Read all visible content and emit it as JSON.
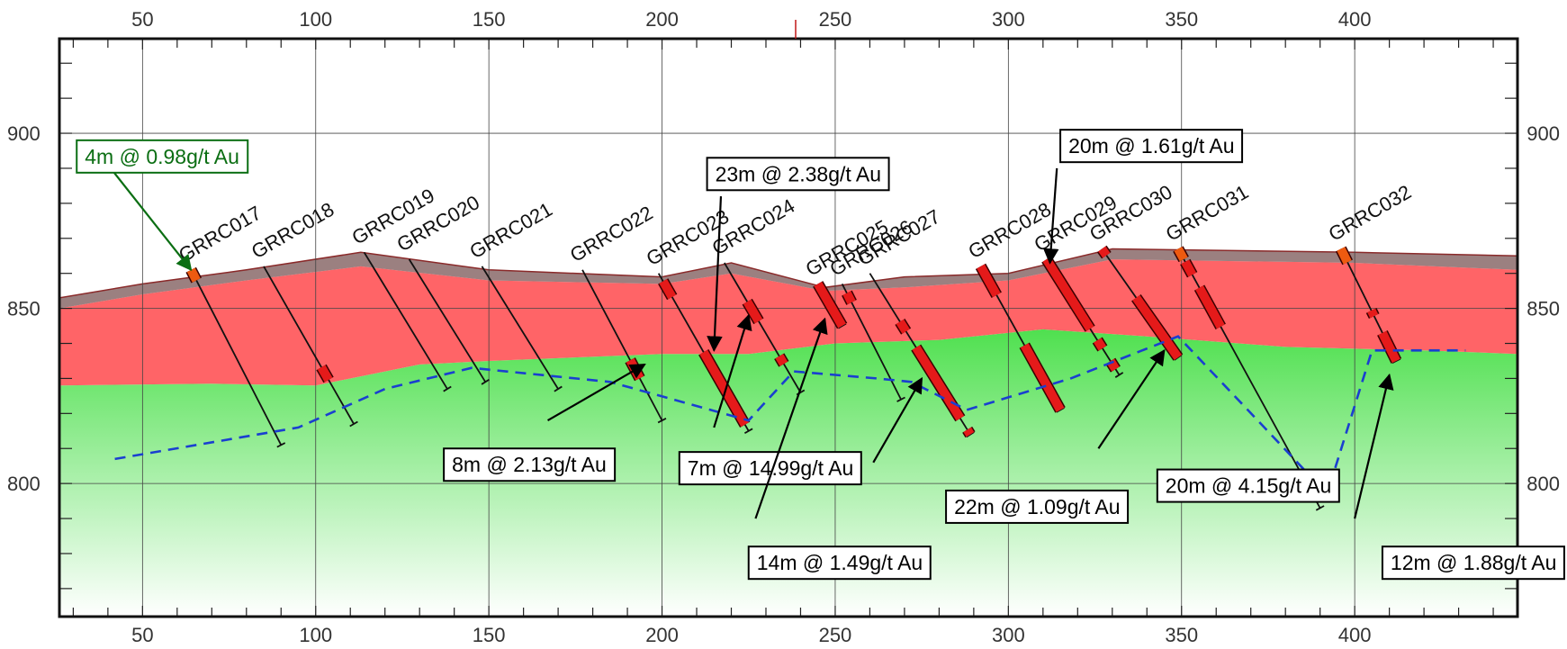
{
  "colors": {
    "weathered": "#ff6467",
    "regolith_top": "#8a6a6a",
    "fresh_top": "#4fe04f",
    "fresh_bottom": "#ffffff",
    "intercept": "#e51a1a",
    "intercept_minor": "#ee5a10",
    "water_table": "#1a3fd0",
    "annotation_green": "#0b6e13",
    "annotation_black": "#000000"
  },
  "axes": {
    "x_ticks": [
      "50",
      "100",
      "150",
      "200",
      "250",
      "300",
      "350",
      "400"
    ],
    "y_ticks": [
      "800",
      "850",
      "900"
    ],
    "xlim": [
      26,
      447
    ],
    "ylim": [
      762,
      927
    ],
    "grid": true
  },
  "surfaces": {
    "topography": [
      [
        26,
        853
      ],
      [
        50,
        857
      ],
      [
        80,
        861
      ],
      [
        113,
        866
      ],
      [
        150,
        861
      ],
      [
        200,
        859
      ],
      [
        220,
        863
      ],
      [
        247,
        856
      ],
      [
        270,
        859
      ],
      [
        300,
        860
      ],
      [
        330,
        867
      ],
      [
        400,
        866
      ],
      [
        447,
        865
      ]
    ],
    "regolith_base": [
      [
        26,
        850
      ],
      [
        50,
        854
      ],
      [
        80,
        858
      ],
      [
        113,
        862
      ],
      [
        150,
        858
      ],
      [
        200,
        857
      ],
      [
        220,
        860
      ],
      [
        247,
        855
      ],
      [
        270,
        856
      ],
      [
        300,
        858
      ],
      [
        330,
        864
      ],
      [
        400,
        863
      ],
      [
        447,
        861
      ]
    ],
    "fresh_rock_top": [
      [
        26,
        828
      ],
      [
        70,
        828.5
      ],
      [
        100,
        828
      ],
      [
        130,
        834
      ],
      [
        150,
        835
      ],
      [
        200,
        837
      ],
      [
        225,
        837
      ],
      [
        250,
        840
      ],
      [
        280,
        841
      ],
      [
        310,
        844
      ],
      [
        340,
        842
      ],
      [
        380,
        839
      ],
      [
        420,
        838
      ],
      [
        447,
        837
      ]
    ],
    "water_table": [
      [
        42,
        807
      ],
      [
        95,
        816
      ],
      [
        120,
        827
      ],
      [
        145,
        833
      ],
      [
        185,
        829
      ],
      [
        225,
        818
      ],
      [
        238,
        832
      ],
      [
        262,
        830
      ],
      [
        272,
        829
      ],
      [
        288,
        821
      ],
      [
        318,
        830
      ],
      [
        349,
        842
      ],
      [
        372,
        818
      ],
      [
        392,
        797
      ],
      [
        405,
        838
      ],
      [
        432,
        838
      ]
    ]
  },
  "drill_holes": [
    {
      "name": "GRRC017",
      "collar": [
        64,
        861
      ],
      "toe": [
        90,
        811
      ]
    },
    {
      "name": "GRRC018",
      "collar": [
        85,
        862
      ],
      "toe": [
        111,
        817
      ]
    },
    {
      "name": "GRRC019",
      "collar": [
        114,
        866
      ],
      "toe": [
        138,
        827
      ]
    },
    {
      "name": "GRRC020",
      "collar": [
        127,
        864
      ],
      "toe": [
        149,
        829
      ]
    },
    {
      "name": "GRRC021",
      "collar": [
        148,
        862
      ],
      "toe": [
        170,
        827
      ]
    },
    {
      "name": "GRRC022",
      "collar": [
        177,
        861
      ],
      "toe": [
        200,
        818
      ]
    },
    {
      "name": "GRRC023",
      "collar": [
        199,
        860
      ],
      "toe": [
        225,
        815
      ]
    },
    {
      "name": "GRRC024",
      "collar": [
        218,
        863
      ],
      "toe": [
        240,
        826
      ]
    },
    {
      "name": "GRRC025",
      "collar": [
        245,
        857
      ],
      "toe": [
        252,
        845
      ]
    },
    {
      "name": "GRRC026",
      "collar": [
        252,
        857
      ],
      "toe": [
        269,
        824
      ]
    },
    {
      "name": "GRRC027",
      "collar": [
        260,
        860
      ],
      "toe": [
        289,
        814
      ]
    },
    {
      "name": "GRRC028",
      "collar": [
        292,
        862
      ],
      "toe": [
        315,
        821
      ]
    },
    {
      "name": "GRRC029",
      "collar": [
        311,
        864
      ],
      "toe": [
        332,
        831
      ]
    },
    {
      "name": "GRRC030",
      "collar": [
        327,
        867
      ],
      "toe": [
        349,
        836
      ]
    },
    {
      "name": "GRRC031",
      "collar": [
        349,
        867
      ],
      "toe": [
        390,
        793
      ]
    },
    {
      "name": "GRRC032",
      "collar": [
        396,
        867
      ],
      "toe": [
        412,
        835
      ]
    }
  ],
  "intercepts": [
    {
      "hole": "GRRC017",
      "from": 0,
      "to": 0.06,
      "minor": true
    },
    {
      "hole": "GRRC018",
      "from": 0.64,
      "to": 0.72,
      "minor": false
    },
    {
      "hole": "GRRC022",
      "from": 0.6,
      "to": 0.72,
      "minor": false
    },
    {
      "hole": "GRRC023",
      "from": 0.05,
      "to": 0.15,
      "minor": false
    },
    {
      "hole": "GRRC023",
      "from": 0.5,
      "to": 0.96,
      "minor": false
    },
    {
      "hole": "GRRC024",
      "from": 0.3,
      "to": 0.45,
      "minor": false
    },
    {
      "hole": "GRRC024",
      "from": 0.72,
      "to": 0.78,
      "minor": false
    },
    {
      "hole": "GRRC025",
      "from": 0.0,
      "to": 1.0,
      "minor": false
    },
    {
      "hole": "GRRC026",
      "from": 0.08,
      "to": 0.16,
      "minor": false
    },
    {
      "hole": "GRRC027",
      "from": 0.3,
      "to": 0.36,
      "minor": false
    },
    {
      "hole": "GRRC027",
      "from": 0.46,
      "to": 0.9,
      "minor": false
    },
    {
      "hole": "GRRC027",
      "from": 0.97,
      "to": 1.0,
      "minor": false
    },
    {
      "hole": "GRRC028",
      "from": 0.0,
      "to": 0.2,
      "minor": false
    },
    {
      "hole": "GRRC028",
      "from": 0.55,
      "to": 1.0,
      "minor": false
    },
    {
      "hole": "GRRC029",
      "from": 0.0,
      "to": 0.6,
      "minor": false
    },
    {
      "hole": "GRRC029",
      "from": 0.7,
      "to": 0.77,
      "minor": false
    },
    {
      "hole": "GRRC029",
      "from": 0.88,
      "to": 0.95,
      "minor": false
    },
    {
      "hole": "GRRC030",
      "from": 0.0,
      "to": 0.06,
      "minor": false
    },
    {
      "hole": "GRRC030",
      "from": 0.45,
      "to": 1.0,
      "minor": false
    },
    {
      "hole": "GRRC031",
      "from": 0.0,
      "to": 0.04,
      "minor": true
    },
    {
      "hole": "GRRC031",
      "from": 0.05,
      "to": 0.1,
      "minor": false
    },
    {
      "hole": "GRRC031",
      "from": 0.15,
      "to": 0.3,
      "minor": false
    },
    {
      "hole": "GRRC032",
      "from": 0.0,
      "to": 0.12,
      "minor": true
    },
    {
      "hole": "GRRC032",
      "from": 0.55,
      "to": 0.6,
      "minor": false
    },
    {
      "hole": "GRRC032",
      "from": 0.75,
      "to": 1.0,
      "minor": false
    }
  ],
  "annotations": [
    {
      "text": "4m @ 0.98g/t Au",
      "color": "green",
      "box": [
        31,
        898
      ],
      "tip": [
        64,
        861
      ],
      "tail": [
        40,
        891
      ]
    },
    {
      "text": "23m @ 2.38g/t Au",
      "color": "black",
      "box": [
        213,
        893
      ],
      "tip": [
        215,
        838
      ],
      "tail": [
        217,
        882
      ]
    },
    {
      "text": "20m @ 1.61g/t Au",
      "color": "black",
      "box": [
        315,
        901
      ],
      "tip": [
        312,
        863
      ],
      "tail": [
        314,
        890
      ]
    },
    {
      "text": "8m @ 2.13g/t Au",
      "color": "black",
      "box": [
        137,
        810
      ],
      "tip": [
        195,
        834
      ],
      "tail": [
        167,
        818
      ]
    },
    {
      "text": "7m @ 14.99g/t Au",
      "color": "black",
      "box": [
        205,
        809
      ],
      "tip": [
        225,
        848
      ],
      "tail": [
        215,
        816
      ]
    },
    {
      "text": "14m @ 1.49g/t Au",
      "color": "black",
      "box": [
        225,
        782
      ],
      "tip": [
        247,
        847
      ],
      "tail": [
        227,
        790
      ]
    },
    {
      "text": "22m @ 1.09g/t Au",
      "color": "black",
      "box": [
        282,
        798
      ],
      "tip": [
        275,
        830
      ],
      "tail": [
        261,
        806
      ]
    },
    {
      "text": "20m @ 4.15g/t Au",
      "color": "black",
      "box": [
        343,
        804
      ],
      "tip": [
        345,
        838
      ],
      "tail": [
        326,
        810
      ]
    },
    {
      "text": "12m @ 1.88g/t Au",
      "color": "black",
      "box": [
        408,
        782
      ],
      "tip": [
        410,
        831
      ],
      "tail": [
        400,
        790
      ]
    }
  ]
}
